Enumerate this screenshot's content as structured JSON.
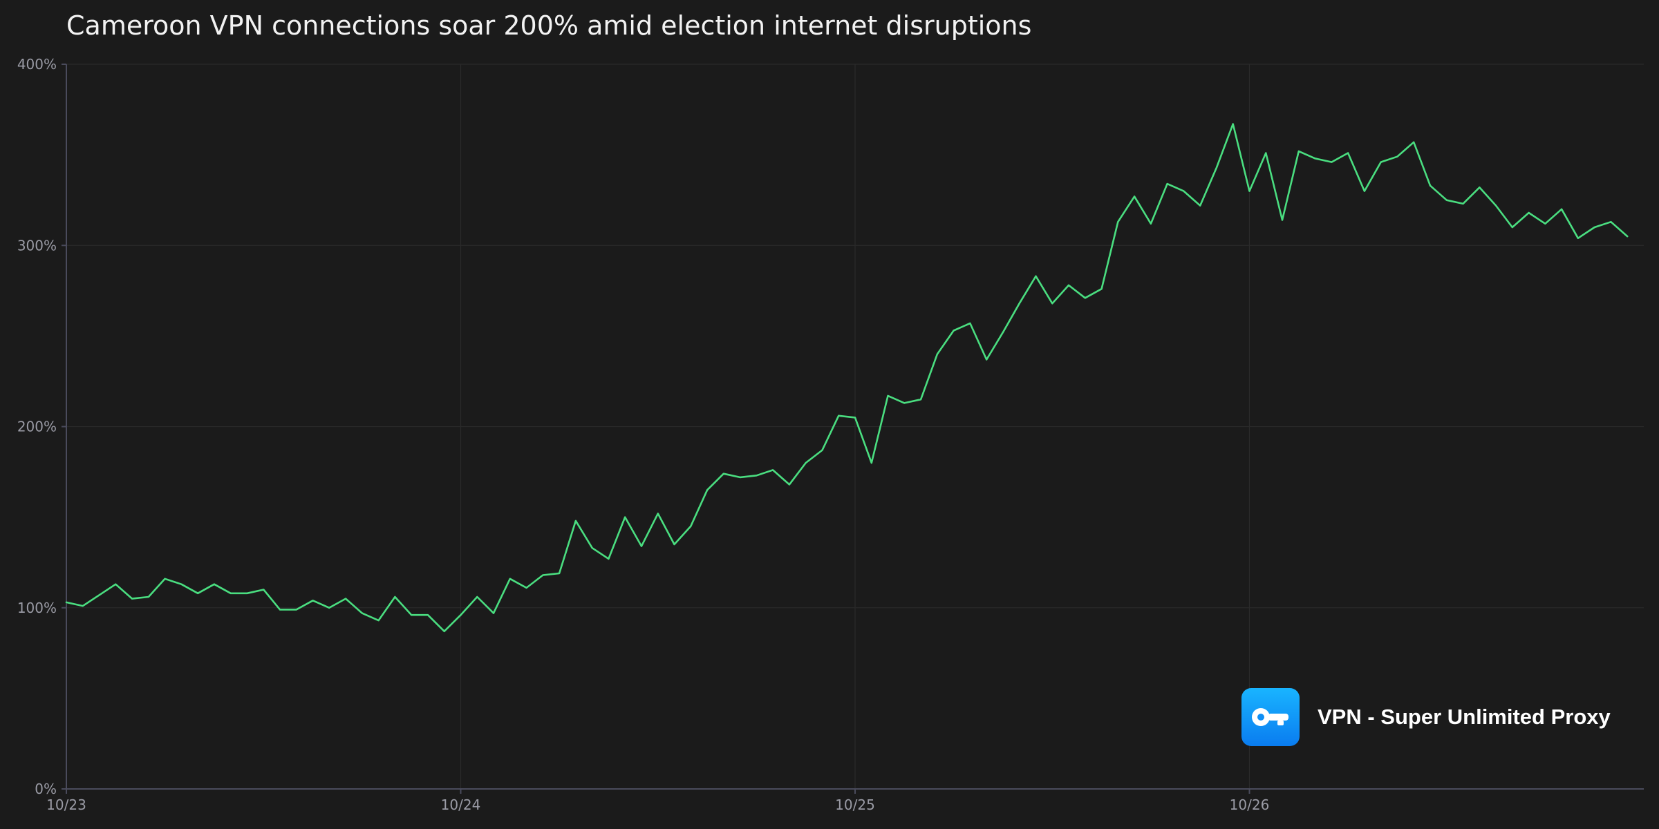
{
  "chart_data": {
    "type": "line",
    "title": "Cameroon VPN connections soar 200% amid election internet disruptions",
    "xlabel": "",
    "ylabel": "",
    "ylim": [
      0,
      400
    ],
    "yticks": [
      0,
      100,
      200,
      300,
      400
    ],
    "ytick_labels": [
      "0%",
      "100%",
      "200%",
      "300%",
      "400%"
    ],
    "xlim": [
      0,
      96
    ],
    "xticks": [
      0,
      24,
      48,
      72
    ],
    "xtick_labels": [
      "10/23",
      "10/24",
      "10/25",
      "10/26"
    ],
    "grid": true,
    "series": [
      {
        "name": "VPN connections",
        "color": "#4ade80",
        "x": [
          0,
          1,
          2,
          3,
          4,
          5,
          6,
          7,
          8,
          9,
          10,
          11,
          12,
          13,
          14,
          15,
          16,
          17,
          18,
          19,
          20,
          21,
          22,
          23,
          24,
          25,
          26,
          27,
          28,
          29,
          30,
          31,
          32,
          33,
          34,
          35,
          36,
          37,
          38,
          39,
          40,
          41,
          42,
          43,
          44,
          45,
          46,
          47,
          48,
          49,
          50,
          51,
          52,
          53,
          54,
          55,
          56,
          57,
          58,
          59,
          60,
          61,
          62,
          63,
          64,
          65,
          66,
          67,
          68,
          69,
          70,
          71,
          72,
          73,
          74,
          75,
          76,
          77,
          78,
          79,
          80,
          81,
          82,
          83,
          84,
          85,
          86,
          87,
          88,
          89,
          90,
          91,
          92,
          93,
          94,
          95
        ],
        "values": [
          103,
          101,
          107,
          113,
          105,
          106,
          116,
          113,
          108,
          113,
          108,
          108,
          110,
          99,
          99,
          104,
          100,
          105,
          97,
          93,
          106,
          96,
          96,
          87,
          96,
          106,
          97,
          116,
          111,
          118,
          119,
          148,
          133,
          127,
          150,
          134,
          152,
          135,
          145,
          165,
          174,
          172,
          173,
          176,
          168,
          180,
          187,
          206,
          205,
          180,
          217,
          213,
          215,
          240,
          253,
          257,
          237,
          252,
          268,
          283,
          268,
          278,
          271,
          276,
          313,
          327,
          312,
          334,
          330,
          322,
          343,
          367,
          330,
          351,
          314,
          352,
          348,
          346,
          351,
          330,
          346,
          349,
          357,
          333,
          325,
          323,
          332,
          322,
          310,
          318,
          312,
          320,
          304,
          310,
          313,
          305
        ]
      }
    ]
  },
  "brand": {
    "name": "VPN - Super Unlimited Proxy",
    "logo_icon": "key-icon",
    "logo_color_top": "#19b4ff",
    "logo_color_bottom": "#0a7cf0"
  }
}
